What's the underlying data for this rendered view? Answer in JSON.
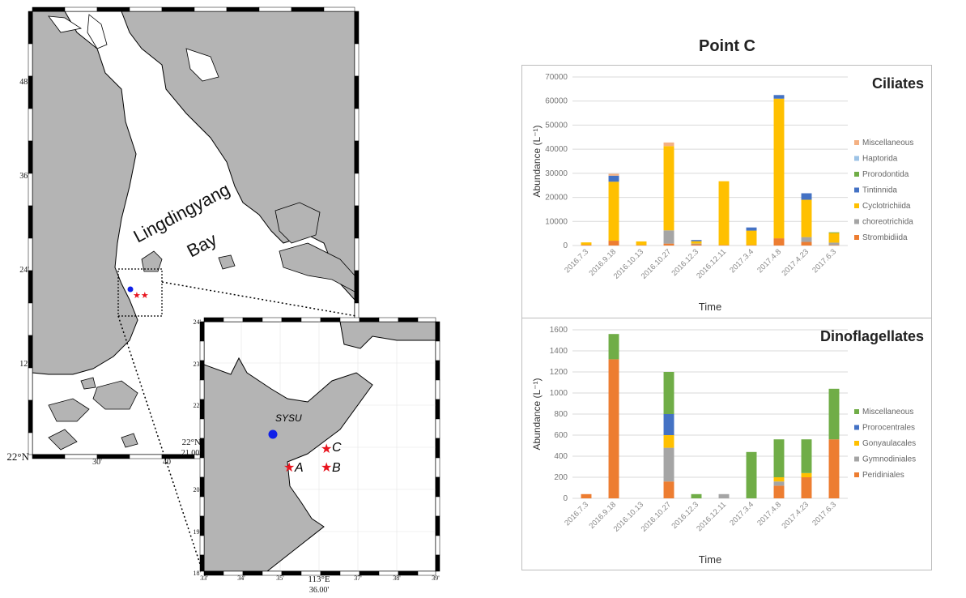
{
  "page_title": "Point C",
  "map": {
    "bay_label_1": "Lingdingyang",
    "bay_label_2": "Bay",
    "lat_labels": [
      "48'",
      "36'",
      "24'",
      "12'",
      "22°N"
    ],
    "lon_labels": [
      "30'",
      "40"
    ],
    "inset": {
      "lat_labels": [
        "24'",
        "23'",
        "22'",
        "22°N",
        "20'",
        "19'",
        "18'"
      ],
      "lat_extra": "21.00'",
      "lon_labels": [
        "33'",
        "34'",
        "35'",
        "113°E",
        "37'",
        "38'",
        "39'"
      ],
      "lon_extra": "36.00'",
      "sysu_label": "SYSU",
      "point_labels": [
        "A",
        "B",
        "C"
      ]
    },
    "colors": {
      "land": "#b4b4b4",
      "sysu": "#1020e8",
      "stars": "#e8141e"
    }
  },
  "chart_data": [
    {
      "type": "bar",
      "stacked": true,
      "title": "Ciliates",
      "xlabel": "Time",
      "ylabel": "Abundance (L⁻¹)",
      "ylim": [
        0,
        70000
      ],
      "yticks": [
        0,
        10000,
        20000,
        30000,
        40000,
        50000,
        60000,
        70000
      ],
      "categories": [
        "2016.7.3",
        "2016.9.18",
        "2016.10.13",
        "2016.10.27",
        "2016.12.3",
        "2016.12.11",
        "2017.3.4",
        "2017.4.8",
        "2017.4.23",
        "2017.6.3"
      ],
      "legend_position": "right",
      "series": [
        {
          "name": "Strombidiida",
          "color": "#ed7d31",
          "values": [
            300,
            2000,
            200,
            800,
            500,
            200,
            200,
            3000,
            1500,
            200
          ]
        },
        {
          "name": "choreotrichida",
          "color": "#a5a5a5",
          "values": [
            0,
            0,
            0,
            5500,
            300,
            0,
            0,
            0,
            2000,
            1000
          ]
        },
        {
          "name": "Cyclotrichiida",
          "color": "#ffc000",
          "values": [
            1000,
            24500,
            1500,
            35000,
            1000,
            26500,
            6000,
            58000,
            15500,
            4000
          ]
        },
        {
          "name": "Tintinnida",
          "color": "#4472c4",
          "values": [
            0,
            2500,
            0,
            0,
            500,
            0,
            1300,
            1500,
            2700,
            0
          ]
        },
        {
          "name": "Prorodontida",
          "color": "#70ad47",
          "values": [
            0,
            0,
            0,
            0,
            0,
            0,
            0,
            0,
            0,
            300
          ]
        },
        {
          "name": "Haptorida",
          "color": "#9dc3e6",
          "values": [
            0,
            0,
            0,
            0,
            0,
            0,
            0,
            0,
            0,
            0
          ]
        },
        {
          "name": "Miscellaneous",
          "color": "#f4b183",
          "values": [
            0,
            800,
            0,
            1500,
            0,
            0,
            0,
            0,
            0,
            0
          ]
        }
      ]
    },
    {
      "type": "bar",
      "stacked": true,
      "title": "Dinoflagellates",
      "xlabel": "Time",
      "ylabel": "Abundance (L⁻¹)",
      "ylim": [
        0,
        1600
      ],
      "yticks": [
        0,
        200,
        400,
        600,
        800,
        1000,
        1200,
        1400,
        1600
      ],
      "categories": [
        "2016.7.3",
        "2016.9.18",
        "2016.10.13",
        "2016.10.27",
        "2016.12.3",
        "2016.12.11",
        "2017.3.4",
        "2017.4.8",
        "2017.4.23",
        "2017.6.3"
      ],
      "legend_position": "right",
      "series": [
        {
          "name": "Peridiniales",
          "color": "#ed7d31",
          "values": [
            40,
            1320,
            0,
            160,
            0,
            0,
            0,
            120,
            200,
            560
          ]
        },
        {
          "name": "Gymnodiniales",
          "color": "#a5a5a5",
          "values": [
            0,
            0,
            0,
            320,
            0,
            40,
            0,
            40,
            0,
            0
          ]
        },
        {
          "name": "Gonyaulacales",
          "color": "#ffc000",
          "values": [
            0,
            0,
            0,
            120,
            0,
            0,
            0,
            40,
            40,
            0
          ]
        },
        {
          "name": "Prorocentrales",
          "color": "#4472c4",
          "values": [
            0,
            0,
            0,
            200,
            0,
            0,
            0,
            0,
            0,
            0
          ]
        },
        {
          "name": "Miscellaneous",
          "color": "#70ad47",
          "values": [
            0,
            240,
            0,
            400,
            40,
            0,
            440,
            360,
            320,
            480
          ]
        }
      ]
    }
  ]
}
